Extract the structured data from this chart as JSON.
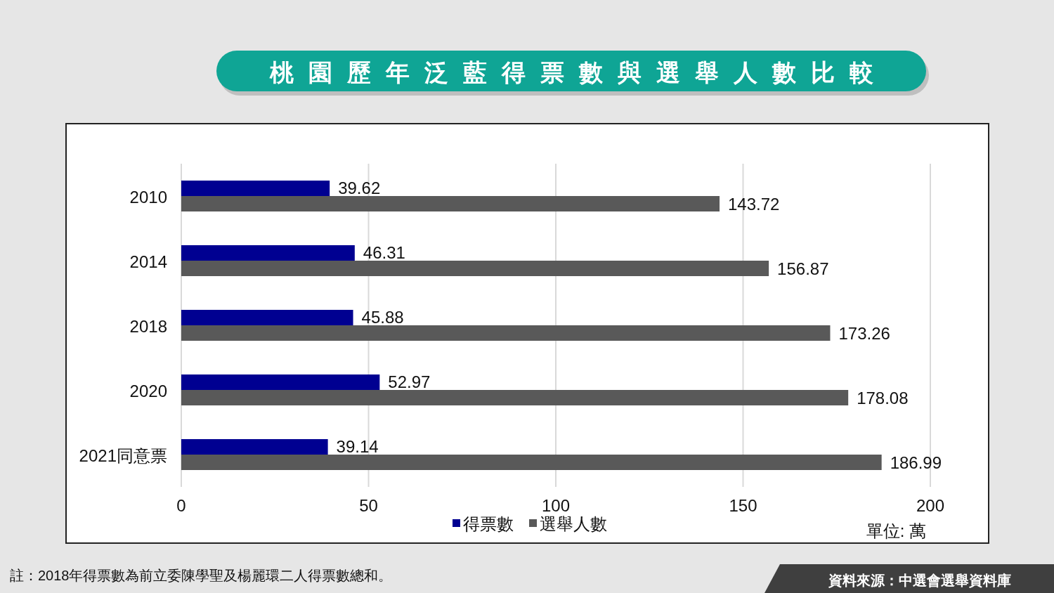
{
  "chart_data": {
    "type": "bar",
    "orientation": "horizontal",
    "title": "桃園歷年泛藍得票數與選舉人數比較",
    "categories": [
      "2010",
      "2014",
      "2018",
      "2020",
      "2021同意票"
    ],
    "series": [
      {
        "name": "得票數",
        "color": "#000091",
        "values": [
          39.62,
          46.31,
          45.88,
          52.97,
          39.14
        ]
      },
      {
        "name": "選舉人數",
        "color": "#595959",
        "values": [
          143.72,
          156.87,
          173.26,
          178.08,
          186.99
        ]
      }
    ],
    "xlim": [
      0,
      200
    ],
    "xticks": [
      0,
      50,
      100,
      150,
      200
    ],
    "grid": "x",
    "legend": "bottom",
    "data_labels": true,
    "annotations": [
      "單位: 萬",
      "註：2018年得票數為前立委陳學聖及楊麗環二人得票數總和。",
      "資料來源：中選會選舉資料庫"
    ]
  }
}
